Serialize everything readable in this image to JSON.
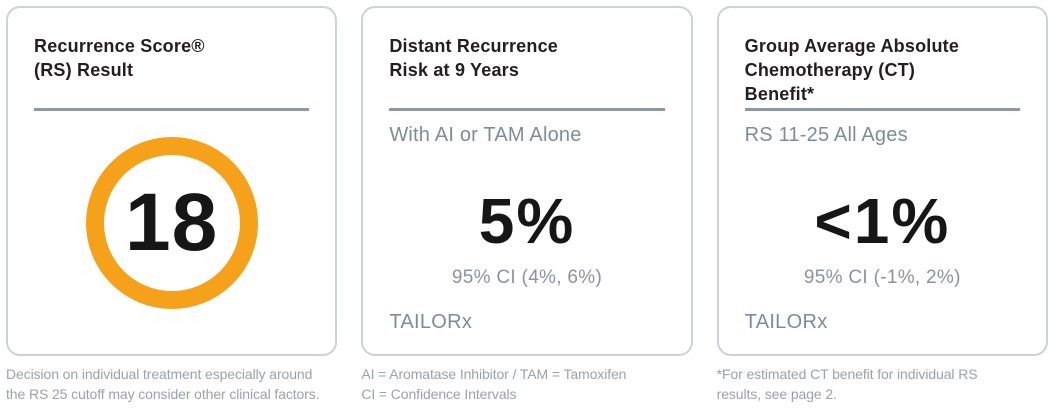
{
  "colors": {
    "accent_orange": "#f5a21a",
    "divider_slate": "#8c98a4",
    "subtitle_slate": "#7d8c9b",
    "ci_gray": "#8a939c",
    "footnote_gray": "#9aa2a9",
    "card_border": "#cdd2d7",
    "text_black": "#161616"
  },
  "cards": [
    {
      "title_lines": [
        "Recurrence Score®",
        "(RS) Result"
      ],
      "score": "18",
      "footnote_lines": [
        "Decision on individual treatment especially around",
        "the RS 25 cutoff may consider other clinical factors."
      ]
    },
    {
      "title_lines": [
        "Distant Recurrence",
        "Risk at 9 Years"
      ],
      "subtitle": "With AI or TAM Alone",
      "value": "5%",
      "ci": "95% CI (4%, 6%)",
      "source": "TAILORx",
      "footnote_lines": [
        "AI = Aromatase Inhibitor / TAM = Tamoxifen",
        "CI = Confidence Intervals"
      ]
    },
    {
      "title_lines": [
        "Group Average Absolute",
        "Chemotherapy (CT)",
        "Benefit*"
      ],
      "subtitle": "RS 11-25 All Ages",
      "value": "<1%",
      "ci": "95% CI (-1%, 2%)",
      "source": "TAILORx",
      "footnote_lines": [
        "*For estimated CT benefit for individual RS",
        "results, see page 2."
      ]
    }
  ]
}
